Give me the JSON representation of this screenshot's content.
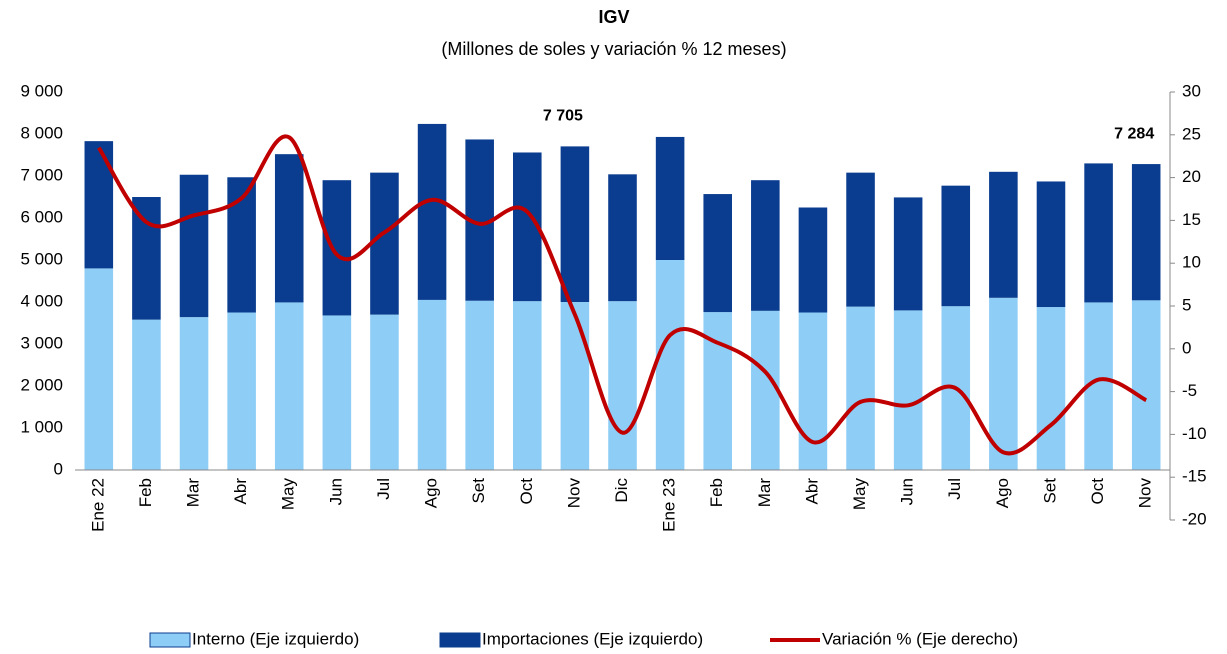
{
  "chart_data": {
    "type": "bar_line",
    "title": "IGV",
    "subtitle": "(Millones de soles y variación % 12 meses)",
    "categories": [
      "Ene 22",
      "Feb",
      "Mar",
      "Abr",
      "May",
      "Jun",
      "Jul",
      "Ago",
      "Set",
      "Oct",
      "Nov",
      "Dic",
      "Ene 23",
      "Feb",
      "Mar",
      "Abr",
      "May",
      "Jun",
      "Jul",
      "Ago",
      "Set",
      "Oct",
      "Nov"
    ],
    "series": [
      {
        "name": "Interno (Eje izquierdo)",
        "color": "#8ecdf6",
        "type": "bar",
        "values": [
          4800,
          3580,
          3640,
          3750,
          3990,
          3680,
          3700,
          4050,
          4030,
          4020,
          4000,
          4020,
          5000,
          3760,
          3790,
          3750,
          3890,
          3800,
          3900,
          4100,
          3880,
          3990,
          4040
        ]
      },
      {
        "name": "Importaciones (Eje izquierdo)",
        "color": "#0a3d8f",
        "type": "bar",
        "values": [
          3030,
          2920,
          3390,
          3220,
          3530,
          3220,
          3380,
          4190,
          3840,
          3540,
          3705,
          3020,
          2930,
          2810,
          3110,
          2500,
          3190,
          2690,
          2870,
          3000,
          2990,
          3310,
          3244
        ]
      },
      {
        "name": "Variación % (Eje derecho)",
        "color": "#c00000",
        "type": "line",
        "axis": "y2",
        "values": [
          23.5,
          14.8,
          15.6,
          17.6,
          24.7,
          11.0,
          13.6,
          17.4,
          14.6,
          16.0,
          4.0,
          -9.8,
          1.6,
          0.7,
          -2.7,
          -10.9,
          -6.2,
          -6.6,
          -4.6,
          -12.1,
          -8.9,
          -3.6,
          -6.0
        ]
      }
    ],
    "annotations": [
      {
        "value": 7705,
        "label": "7 705"
      },
      {
        "value": 7284,
        "label": "7 284"
      }
    ],
    "ylim": [
      0,
      9000
    ],
    "yticks": [
      0,
      {
        "value": 1000,
        "label": "1 000"
      },
      {
        "value": 2000,
        "label": "2 000"
      },
      {
        "value": 3000,
        "label": "3 000"
      },
      {
        "value": 4000,
        "label": "4 000"
      },
      {
        "value": 5000,
        "label": "5 000"
      },
      {
        "value": 6000,
        "label": "6 000"
      },
      {
        "value": 7000,
        "label": "7 000"
      },
      {
        "value": 8000,
        "label": "8 000"
      },
      {
        "value": 9000,
        "label": "9 000"
      }
    ],
    "y2lim": [
      -20,
      30
    ],
    "y2ticks": [
      -20,
      -15,
      -10,
      -5,
      0,
      5,
      10,
      15,
      20,
      25,
      30
    ],
    "grid": false,
    "legend": "bottom"
  }
}
